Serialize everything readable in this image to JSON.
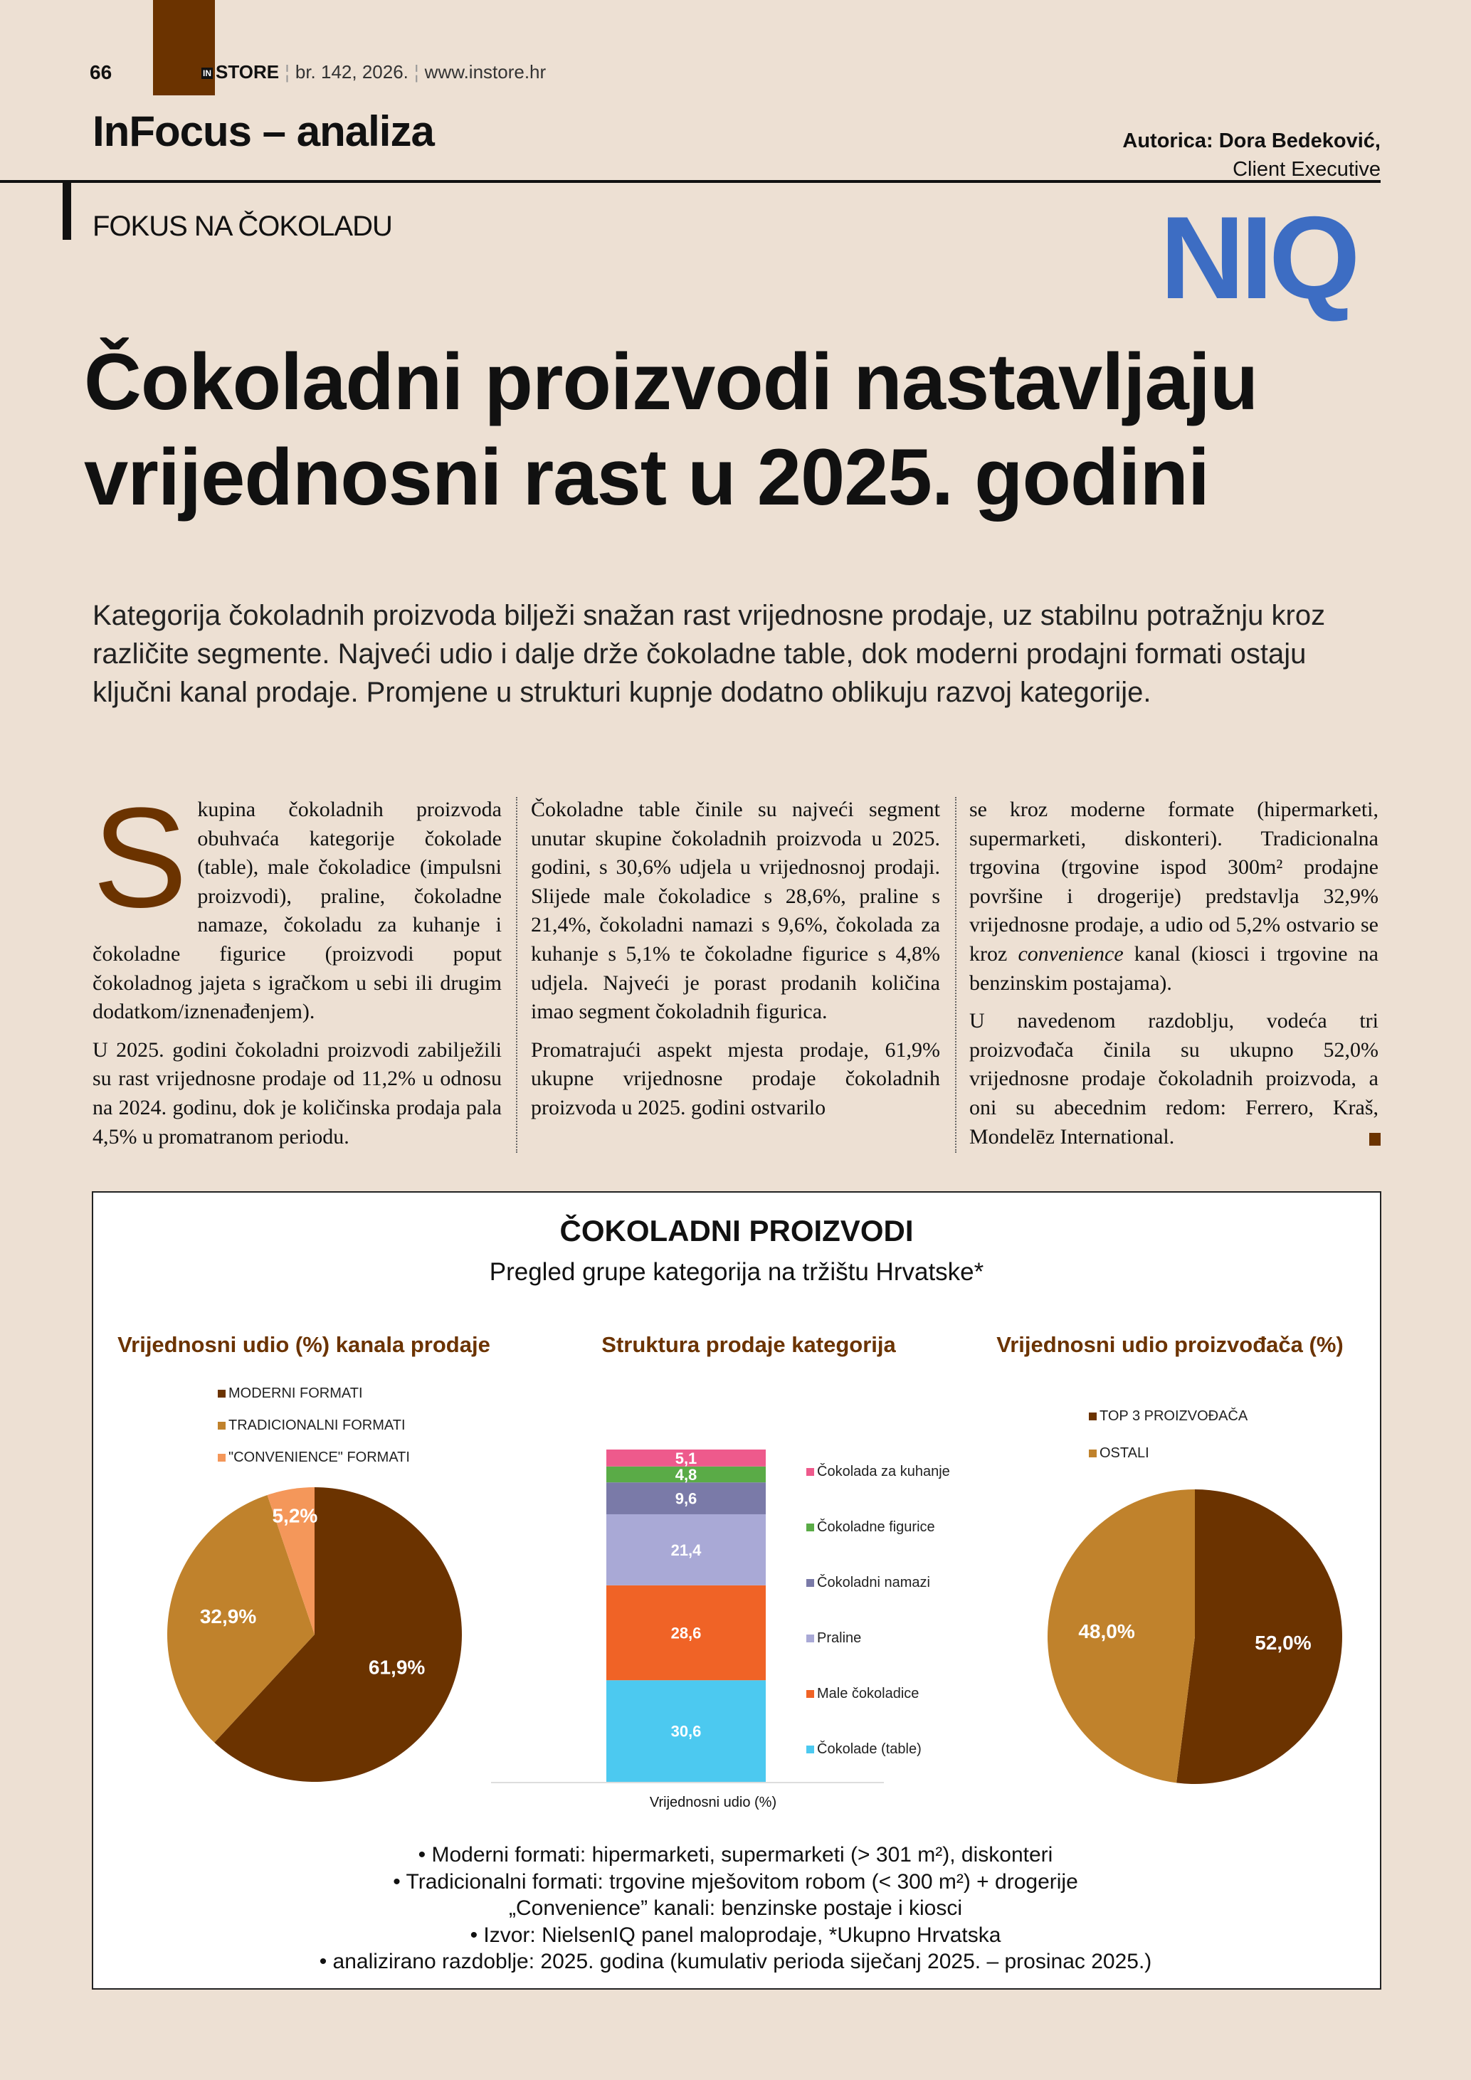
{
  "header": {
    "page_number": "66",
    "magazine_badge": "IN",
    "magazine": "STORE",
    "issue": "br. 142, 2026.",
    "website": "www.instore.hr",
    "section": "InFocus – analiza",
    "author_name": "Autorica: Dora Bedeković,",
    "author_role": "Client Executive",
    "kicker": "FOKUS NA ČOKOLADU",
    "logo_text": "NIQ",
    "brand_color": "#6b3300"
  },
  "article": {
    "headline_line1": "Čokoladni proizvodi nastavljaju",
    "headline_line2": "vrijednosni rast u 2025. godini",
    "intro": "Kategorija čokoladnih proizvoda bilježi snažan rast vrijednosne prodaje, uz stabilnu potražnju kroz različite segmente. Najveći udio i dalje drže čokoladne table, dok moderni prodajni formati ostaju ključni kanal prodaje. Promjene u strukturi kupnje dodatno oblikuju razvoj kategorije.",
    "drop_cap": "S",
    "col1_p1": "kupina čokoladnih proizvoda obuhvaća kategorije čokolade (table), male čokoladice (impulsni proizvodi), praline, čokoladne namaze, čokoladu za kuhanje i čokoladne figurice (proizvodi poput čokoladnog jajeta s igračkom u sebi ili drugim dodatkom/iznenađenjem).",
    "col1_p2": "U 2025. godini čokoladni proizvodi zabilježili su rast vrijednosne prodaje od 11,2% u odnosu na 2024. godinu, dok je količinska prodaja pala 4,5% u promatranom periodu.",
    "col2_p1": "Čokoladne table činile su najveći segment unutar skupine čokoladnih proizvoda u 2025. godini, s 30,6% udjela u vrijednosnoj prodaji. Slijede male čokoladice s 28,6%, praline s 21,4%, čokoladni namazi s 9,6%, čokolada za kuhanje s 5,1% te čokoladne figurice s 4,8% udjela. Najveći je porast prodanih količina imao segment čokoladnih figurica.",
    "col2_p2": "Promatrajući aspekt mjesta prodaje, 61,9% ukupne vrijednosne prodaje čokoladnih proizvoda u 2025. godini ostvarilo",
    "col3_p1_a": "se kroz moderne formate (hipermarketi, supermarketi, diskonteri). Tradicionalna trgovina (trgovine ispod 300m² prodajne površine i drogerije) predstavlja 32,9% vrijednosne prodaje, a udio od 5,2% ostvario se kroz ",
    "col3_p1_em": "convenience",
    "col3_p1_b": " kanal (kiosci i trgovine na benzinskim postajama).",
    "col3_p2": "U navedenom razdoblju, vodeća tri proizvođača činila su ukupno 52,0% vrijednosne prodaje čokoladnih proizvoda, a oni su abecednim redom: Ferrero, Kraš, Mondelēz International."
  },
  "infographic": {
    "title": "ČOKOLADNI PROIZVODI",
    "subtitle": "Pregled grupe kategorija na tržištu Hrvatske*",
    "notes": [
      "•   Moderni formati: hipermarketi, supermarketi (> 301 m²), diskonteri",
      "•   Tradicionalni formati: trgovine mješovitom robom (< 300 m²) + drogerije",
      "„Convenience” kanali: benzinske postaje i kiosci",
      "•   Izvor: NielsenIQ panel maloprodaje, *Ukupno Hrvatska",
      "•   analizirano razdoblje: 2025. godina (kumulativ perioda siječanj 2025. – prosinac 2025.)"
    ]
  },
  "chart_data": [
    {
      "type": "pie",
      "title": "Vrijednosni udio (%) kanala prodaje",
      "legend_position": "top-left",
      "slices": [
        {
          "name": "MODERNI FORMATI",
          "value": 61.9,
          "label": "61,9%",
          "color": "#6b3300"
        },
        {
          "name": "TRADICIONALNI FORMATI",
          "value": 32.9,
          "label": "32,9%",
          "color": "#c0822c"
        },
        {
          "name": "\"CONVENIENCE\" FORMATI",
          "value": 5.2,
          "label": "5,2%",
          "color": "#f4975a"
        }
      ]
    },
    {
      "type": "bar",
      "stacked": true,
      "title": "Struktura prodaje kategorija",
      "xlabel": "Vrijednosni udio (%)",
      "legend_position": "right",
      "series": [
        {
          "name": "Čokolade (table)",
          "value": 30.6,
          "label": "30,6",
          "color": "#4cc9f0"
        },
        {
          "name": "Male čokoladice",
          "value": 28.6,
          "label": "28,6",
          "color": "#f06326"
        },
        {
          "name": "Praline",
          "value": 21.4,
          "label": "21,4",
          "color": "#a9a9d6"
        },
        {
          "name": "Čokoladni namazi",
          "value": 9.6,
          "label": "9,6",
          "color": "#7a7aa8"
        },
        {
          "name": "Čokoladne figurice",
          "value": 4.8,
          "label": "4,8",
          "color": "#5aab47"
        },
        {
          "name": "Čokolada za kuhanje",
          "value": 5.1,
          "label": "5,1",
          "color": "#ee5a8c"
        }
      ]
    },
    {
      "type": "pie",
      "title": "Vrijednosni udio proizvođača (%)",
      "legend_position": "top-right",
      "slices": [
        {
          "name": "TOP 3 PROIZVOĐAČA",
          "value": 52.0,
          "label": "52,0%",
          "color": "#6b3300"
        },
        {
          "name": "OSTALI",
          "value": 48.0,
          "label": "48,0%",
          "color": "#c0822c"
        }
      ]
    }
  ]
}
